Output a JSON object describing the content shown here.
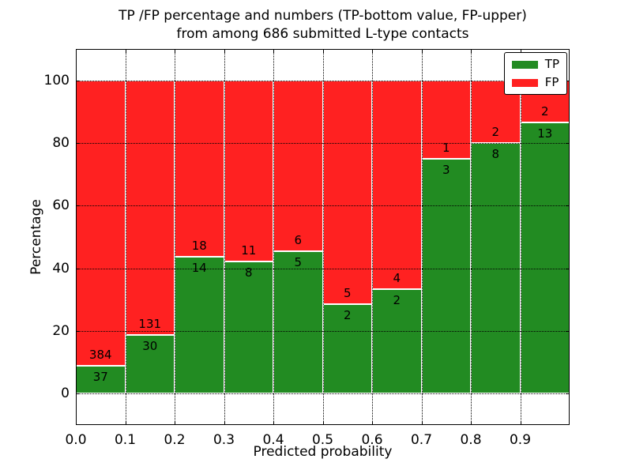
{
  "chart_data": {
    "type": "bar",
    "stacked": true,
    "percent_stacked_to": 100,
    "title_line1": "TP /FP percentage and numbers (TP-bottom value, FP-upper)",
    "title_line2": "from among 686 submitted L-type contacts",
    "xlabel": "Predicted probability",
    "ylabel": "Percentage",
    "total_contacts": 686,
    "bin_edges": [
      0.0,
      0.1,
      0.2,
      0.3,
      0.4,
      0.5,
      0.6,
      0.7,
      0.8,
      0.9,
      1.0
    ],
    "categories": [
      "0.0-0.1",
      "0.1-0.2",
      "0.2-0.3",
      "0.3-0.4",
      "0.4-0.5",
      "0.5-0.6",
      "0.6-0.7",
      "0.7-0.8",
      "0.8-0.9",
      "0.9-1.0"
    ],
    "series": [
      {
        "name": "TP",
        "values": [
          37,
          30,
          14,
          8,
          5,
          2,
          2,
          3,
          8,
          13
        ]
      },
      {
        "name": "FP",
        "values": [
          384,
          131,
          18,
          11,
          6,
          5,
          4,
          1,
          2,
          2
        ]
      }
    ],
    "tp_percent": [
      8.79,
      18.63,
      43.75,
      42.11,
      45.45,
      28.57,
      33.33,
      75.0,
      80.0,
      86.67
    ],
    "xticks": [
      "0.0",
      "0.1",
      "0.2",
      "0.3",
      "0.4",
      "0.5",
      "0.6",
      "0.7",
      "0.8",
      "0.9"
    ],
    "yticks": [
      0,
      20,
      40,
      60,
      80,
      100
    ],
    "xlim": [
      0.0,
      1.0
    ],
    "ylim": [
      -10,
      110
    ],
    "grid": "dotted black, on",
    "legend_position": "upper right",
    "colors": {
      "tp": "#228b22",
      "fp": "#ff2121",
      "bar_edge": "#ffffff",
      "text": "#000000"
    }
  }
}
